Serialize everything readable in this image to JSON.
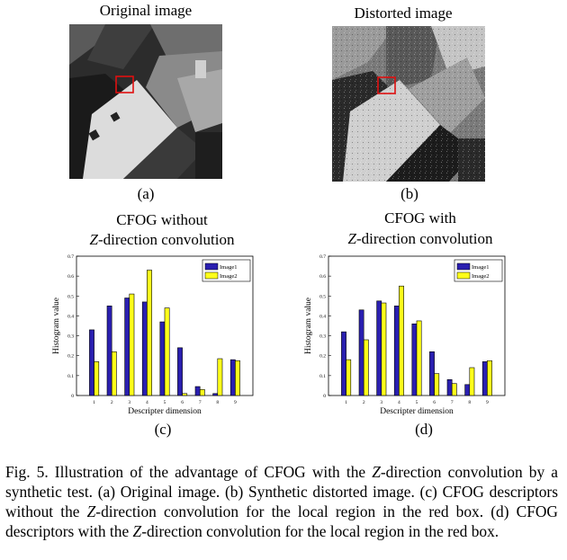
{
  "panels": {
    "a": {
      "title": "Original image",
      "label": "(a)"
    },
    "b": {
      "title": "Distorted image",
      "label": "(b)"
    },
    "c": {
      "title_line1": "CFOG without",
      "title_line2": "Z-direction convolution",
      "label": "(c)"
    },
    "d": {
      "title_line1": "CFOG with",
      "title_line2": "Z-direction convolution",
      "label": "(d)"
    }
  },
  "colors": {
    "image1": "#2a1fb0",
    "image2": "#ffff1a",
    "red_box": "#e01010"
  },
  "chart_data": [
    {
      "type": "bar",
      "panel": "c",
      "categories": [
        "1",
        "2",
        "3",
        "4",
        "5",
        "6",
        "7",
        "8",
        "9"
      ],
      "series": [
        {
          "name": "Image1",
          "values": [
            0.33,
            0.45,
            0.49,
            0.47,
            0.37,
            0.24,
            0.045,
            0.01,
            0.18
          ]
        },
        {
          "name": "Image2",
          "values": [
            0.17,
            0.22,
            0.51,
            0.63,
            0.44,
            0.01,
            0.03,
            0.185,
            0.175
          ]
        }
      ],
      "xlabel": "Descripter dimension",
      "ylabel": "Histogram value",
      "ylim": [
        0,
        0.7
      ],
      "yticks": [
        "0",
        "0.1",
        "0.2",
        "0.3",
        "0.4",
        "0.5",
        "0.6",
        "0.7"
      ],
      "legend": "top-right",
      "grid": false
    },
    {
      "type": "bar",
      "panel": "d",
      "categories": [
        "1",
        "2",
        "3",
        "4",
        "5",
        "6",
        "7",
        "8",
        "9"
      ],
      "series": [
        {
          "name": "Image1",
          "values": [
            0.32,
            0.43,
            0.475,
            0.45,
            0.36,
            0.22,
            0.08,
            0.055,
            0.17
          ]
        },
        {
          "name": "Image2",
          "values": [
            0.18,
            0.28,
            0.465,
            0.55,
            0.375,
            0.11,
            0.06,
            0.14,
            0.175
          ]
        }
      ],
      "xlabel": "Descripter dimension",
      "ylabel": "Histogram value",
      "ylim": [
        0,
        0.7
      ],
      "yticks": [
        "0",
        "0.1",
        "0.2",
        "0.3",
        "0.4",
        "0.5",
        "0.6",
        "0.7"
      ],
      "legend": "top-right",
      "grid": false
    }
  ],
  "caption": {
    "t1": "Fig. 5. Illustration of the advantage of CFOG with the ",
    "z1": "Z",
    "t2": "-direction convolution by a synthetic test. (a) Original image. (b) Synthetic distorted image. (c) CFOG descriptors without the ",
    "z2": "Z",
    "t3": "-direction convolution for the local region in the red box. (d) CFOG descriptors with the ",
    "z3": "Z",
    "t4": "-direction convolution for the local region in the red box."
  }
}
